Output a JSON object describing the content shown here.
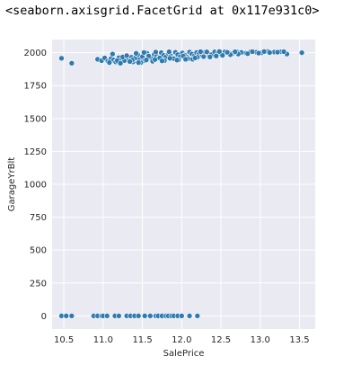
{
  "output_text": "<seaborn.axisgrid.FacetGrid at 0x117e931c0>",
  "colors": {
    "background": "#eaeaf2",
    "grid": "#ffffff",
    "point": "#2f7bb0",
    "point_edge": "#ffffff",
    "text": "#262626"
  },
  "chart_data": {
    "type": "scatter",
    "title": "",
    "xlabel": "SalePrice",
    "ylabel": "GarageYrBlt",
    "xlim": [
      10.35,
      13.7
    ],
    "ylim": [
      -100,
      2100
    ],
    "xticks": [
      "10.5",
      "11.0",
      "11.5",
      "12.0",
      "12.5",
      "13.0",
      "13.5"
    ],
    "yticks": [
      "0",
      "250",
      "500",
      "750",
      "1000",
      "1250",
      "1500",
      "1750",
      "2000"
    ],
    "grid": true,
    "series": [
      {
        "x": [
          10.47,
          10.6,
          10.93,
          10.98,
          11.02,
          11.06,
          11.1,
          11.13,
          11.16,
          11.2,
          11.24,
          11.27,
          11.3,
          11.33,
          11.36,
          11.38,
          11.41,
          11.44,
          11.47,
          11.5,
          11.53,
          11.56,
          11.59,
          11.62,
          11.65,
          11.68,
          11.71,
          11.74,
          11.77,
          11.8,
          11.83,
          11.86,
          11.89,
          11.92,
          11.95,
          11.98,
          12.01,
          12.04,
          12.07,
          12.1,
          12.13,
          12.16,
          12.19,
          12.22,
          12.26,
          12.3,
          12.34,
          12.38,
          12.42,
          12.46,
          12.5,
          12.55,
          12.6,
          12.65,
          12.7,
          12.76,
          12.82,
          12.88,
          12.95,
          13.02,
          13.1,
          13.18,
          13.26,
          13.34,
          13.53,
          11.08,
          11.18,
          11.25,
          11.3,
          11.37,
          11.42,
          11.48,
          11.52,
          11.58,
          11.63,
          11.67,
          11.72,
          11.78,
          11.84,
          11.9,
          11.96,
          12.02,
          12.08,
          12.14,
          12.2,
          12.28,
          12.36,
          12.44,
          12.52,
          12.62,
          12.72,
          12.84,
          12.98,
          13.12,
          13.22,
          11.12,
          11.22,
          11.34,
          11.45,
          11.55,
          11.66,
          11.75,
          11.85,
          11.94,
          12.05,
          12.17,
          12.24,
          12.32,
          12.48,
          12.58,
          12.68,
          12.9,
          13.05,
          13.3,
          10.47,
          10.53,
          10.6,
          10.88,
          10.93,
          10.98,
          11.0,
          11.05,
          11.15,
          11.2,
          11.3,
          11.35,
          11.4,
          11.45,
          11.53,
          11.6,
          11.67,
          11.7,
          11.75,
          11.8,
          11.83,
          11.87,
          11.9,
          11.95,
          12.0,
          12.1,
          12.2
        ],
        "y": [
          1958,
          1920,
          1950,
          1940,
          1960,
          1935,
          1955,
          1945,
          1930,
          1962,
          1950,
          1940,
          1975,
          1955,
          1965,
          1930,
          1960,
          1985,
          1950,
          1970,
          1940,
          1995,
          1965,
          1955,
          1988,
          1975,
          1960,
          2000,
          1980,
          1968,
          1993,
          1978,
          1960,
          2003,
          1985,
          1970,
          1998,
          1982,
          1965,
          2005,
          1990,
          1975,
          2002,
          1993,
          1980,
          2005,
          1995,
          1985,
          2006,
          1998,
          1990,
          2007,
          2000,
          1995,
          2008,
          2002,
          1997,
          2008,
          2004,
          2000,
          2009,
          2005,
          2007,
          1990,
          2000,
          1925,
          1940,
          1968,
          1978,
          1945,
          1995,
          1925,
          2002,
          1975,
          1935,
          2005,
          1960,
          1940,
          2007,
          1955,
          1945,
          1975,
          1955,
          1950,
          1965,
          1970,
          1968,
          1975,
          1980,
          1985,
          1990,
          1993,
          1997,
          2001,
          2004,
          1990,
          1920,
          1933,
          1925,
          1945,
          1948,
          1938,
          1958,
          1944,
          1950,
          1960,
          2008,
          2006,
          2009,
          2003,
          2007,
          2008,
          2009,
          2008,
          0,
          0,
          0,
          0,
          0,
          0,
          0,
          0,
          0,
          0,
          0,
          0,
          0,
          0,
          0,
          0,
          0,
          0,
          0,
          0,
          0,
          0,
          0,
          0,
          0,
          0,
          0
        ]
      }
    ]
  }
}
